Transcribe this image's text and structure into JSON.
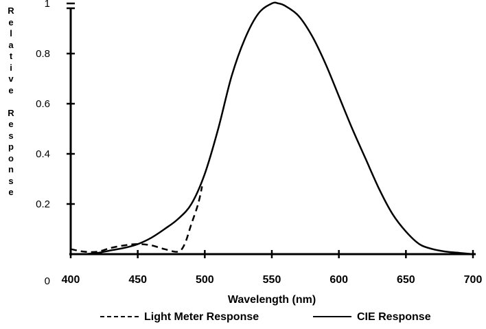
{
  "chart_data": {
    "type": "line",
    "title": "",
    "xlabel": "Wavelength (nm)",
    "ylabel": "Relative Response",
    "xlim": [
      400,
      700
    ],
    "ylim": [
      0,
      1.1
    ],
    "x_ticks": [
      400,
      450,
      500,
      550,
      600,
      650,
      700
    ],
    "x_tick_labels": [
      "400",
      "450",
      "500",
      "550",
      "600",
      "650",
      "700"
    ],
    "y_ticks": [
      0,
      0.2,
      0.4,
      0.6,
      0.8,
      1.0
    ],
    "y_tick_labels": [
      "0",
      "0.2",
      "0.4",
      "0.6",
      "0.8",
      "1"
    ],
    "grid": false,
    "legend_position": "bottom",
    "series": [
      {
        "name": "Light Meter Response",
        "style": "dashed",
        "color": "#000000",
        "x": [
          400,
          410,
          420,
          430,
          440,
          450,
          460,
          470,
          480,
          485,
          490,
          495,
          498
        ],
        "y": [
          0.02,
          0.01,
          0.01,
          0.025,
          0.035,
          0.04,
          0.035,
          0.02,
          0.01,
          0.04,
          0.12,
          0.2,
          0.27
        ]
      },
      {
        "name": "CIE Response",
        "style": "solid",
        "color": "#000000",
        "x": [
          410,
          420,
          430,
          440,
          450,
          460,
          470,
          480,
          490,
          500,
          510,
          520,
          530,
          540,
          550,
          555,
          560,
          570,
          580,
          590,
          600,
          610,
          620,
          630,
          640,
          650,
          660,
          670,
          680,
          690,
          700
        ],
        "y": [
          0.0,
          0.005,
          0.015,
          0.025,
          0.04,
          0.065,
          0.1,
          0.14,
          0.2,
          0.32,
          0.5,
          0.71,
          0.86,
          0.96,
          1.0,
          1.0,
          0.99,
          0.95,
          0.87,
          0.76,
          0.63,
          0.5,
          0.38,
          0.26,
          0.16,
          0.09,
          0.04,
          0.02,
          0.01,
          0.005,
          0.0
        ]
      }
    ]
  }
}
